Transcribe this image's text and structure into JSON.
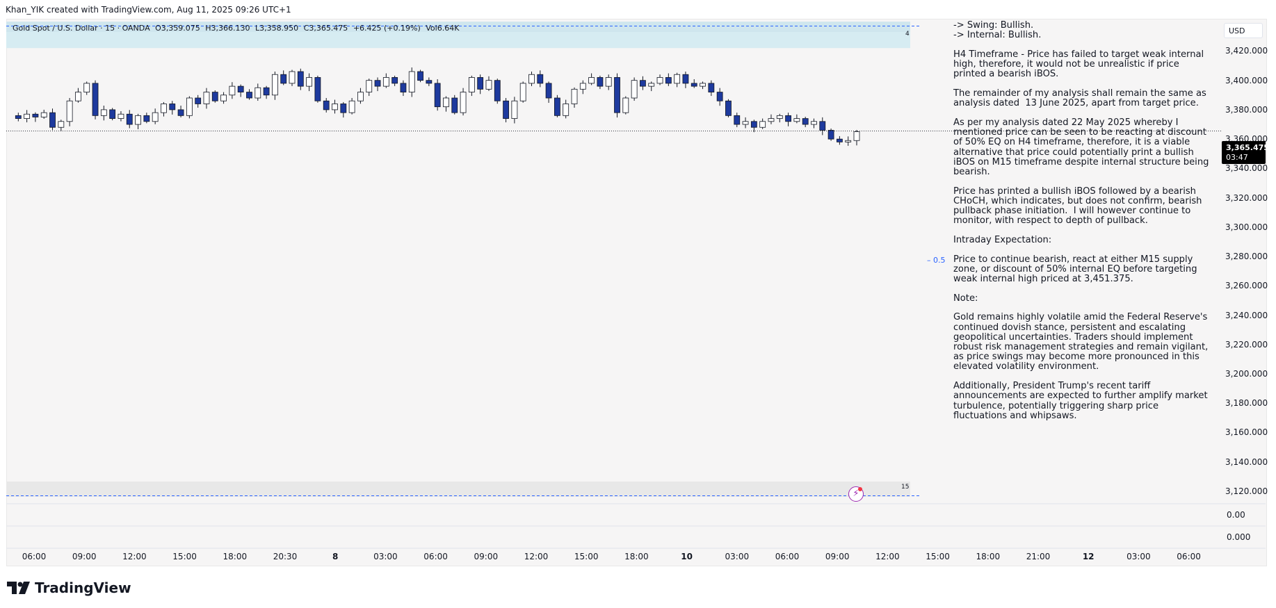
{
  "header": {
    "credit": "Khan_YIK created with TradingView.com, Aug 11, 2025 09:26 UTC+1"
  },
  "legend": {
    "symbol": "Gold Spot / U.S. Dollar · 15 · OANDA",
    "open": "O3,359.075",
    "high": "H3,366.130",
    "low": "L3,358.950",
    "close": "C3,365.475",
    "change": "+6.425 (+0.19%)",
    "volume": "Vol6.64K"
  },
  "markers": {
    "top": "4",
    "bottom": "15"
  },
  "currency": "USD",
  "price_tag": {
    "price": "3,365.475",
    "countdown": "03:47"
  },
  "fib_label": "0.5",
  "annotation": [
    "-> Swing: Bullish.\n-> Internal: Bullish.",
    "H4 Timeframe - Price has failed to target weak internal high, therefore, it would not be unrealistic if price printed a bearish iBOS.",
    "The remainder of my analysis shall remain the same as analysis dated  13 June 2025, apart from target price.",
    "As per my analysis dated 22 May 2025 whereby I mentioned price can be seen to be reacting at discount of 50% EQ on H4 timeframe, therefore, it is a viable alternative that price could potentially print a bullish iBOS on M15 timeframe despite internal structure being bearish.",
    "Price has printed a bullish iBOS followed by a bearish CHoCH, which indicates, but does not confirm, bearish pullback phase initiation.  I will however continue to monitor, with respect to depth of pullback.",
    "Intraday Expectation:",
    "Price to continue bearish, react at either M15 supply zone, or discount of 50% internal EQ before targeting weak internal high priced at 3,451.375.",
    "Note:",
    "Gold remains highly volatile amid the Federal Reserve's continued dovish stance, persistent and escalating geopolitical uncertainties. Traders should implement robust risk management strategies and remain vigilant, as price swings may become more pronounced in this elevated volatility environment.",
    "Additionally, President Trump's recent tariff announcements are expected to further amplify market turbulence, potentially triggering sharp price fluctuations and whipsaws."
  ],
  "sub_panes": {
    "pane1_value": "0.00",
    "pane2_value": "0.000"
  },
  "branding": {
    "logo_text": "TradingView"
  },
  "colors": {
    "bull": "#ffffff",
    "bear": "#1e3a9e",
    "zone": "#d6ecf2",
    "dashed": "#2962ff",
    "flash": "#9c27b0"
  },
  "chart_data": {
    "type": "candlestick",
    "symbol": "Gold Spot / U.S. Dollar",
    "timeframe": "15",
    "y_ticks": [
      3420,
      3400,
      3380,
      3360,
      3340,
      3320,
      3300,
      3280,
      3260,
      3240,
      3220,
      3200,
      3180,
      3160,
      3140,
      3120
    ],
    "y_tick_labels": [
      "3,420.000",
      "3,400.000",
      "3,380.000",
      "3,360.000",
      "3,340.000",
      "3,320.000",
      "3,300.000",
      "3,280.000",
      "3,260.000",
      "3,240.000",
      "3,220.000",
      "3,200.000",
      "3,180.000",
      "3,160.000",
      "3,140.000",
      "3,120.000"
    ],
    "ylim": [
      3110,
      3442
    ],
    "x_ticks": [
      {
        "label": "06:00",
        "bold": false
      },
      {
        "label": "09:00",
        "bold": false
      },
      {
        "label": "12:00",
        "bold": false
      },
      {
        "label": "15:00",
        "bold": false
      },
      {
        "label": "18:00",
        "bold": false
      },
      {
        "label": "20:30",
        "bold": false
      },
      {
        "label": "8",
        "bold": true
      },
      {
        "label": "03:00",
        "bold": false
      },
      {
        "label": "06:00",
        "bold": false
      },
      {
        "label": "09:00",
        "bold": false
      },
      {
        "label": "12:00",
        "bold": false
      },
      {
        "label": "15:00",
        "bold": false
      },
      {
        "label": "18:00",
        "bold": false
      },
      {
        "label": "10",
        "bold": true
      },
      {
        "label": "03:00",
        "bold": false
      },
      {
        "label": "06:00",
        "bold": false
      },
      {
        "label": "09:00",
        "bold": false
      },
      {
        "label": "12:00",
        "bold": false
      },
      {
        "label": "15:00",
        "bold": false
      },
      {
        "label": "18:00",
        "bold": false
      },
      {
        "label": "21:00",
        "bold": false
      },
      {
        "label": "12",
        "bold": true
      },
      {
        "label": "03:00",
        "bold": false
      },
      {
        "label": "06:00",
        "bold": false
      }
    ],
    "current_price": 3365.475,
    "supply_zone": [
      3422,
      3440
    ],
    "dashed_levels": [
      3439.5,
      3118.5
    ],
    "ohlc_path": [
      3376,
      3374,
      3377,
      3375,
      3378,
      3368,
      3372,
      3386,
      3392,
      3398,
      3376,
      3380,
      3374,
      3377,
      3370,
      3376,
      3372,
      3378,
      3384,
      3380,
      3376,
      3388,
      3384,
      3392,
      3386,
      3390,
      3396,
      3392,
      3388,
      3395,
      3390,
      3404,
      3398,
      3406,
      3396,
      3402,
      3386,
      3380,
      3384,
      3378,
      3386,
      3392,
      3400,
      3396,
      3402,
      3398,
      3392,
      3406,
      3400,
      3398,
      3382,
      3388,
      3378,
      3392,
      3402,
      3394,
      3400,
      3386,
      3374,
      3386,
      3398,
      3404,
      3398,
      3388,
      3376,
      3384,
      3394,
      3398,
      3402,
      3396,
      3402,
      3378,
      3388,
      3400,
      3396,
      3398,
      3402,
      3398,
      3404,
      3398,
      3396,
      3398,
      3392,
      3386,
      3376,
      3370,
      3372,
      3368,
      3372,
      3374,
      3376,
      3372,
      3374,
      3370,
      3372,
      3366,
      3360,
      3358,
      3359,
      3365
    ]
  }
}
